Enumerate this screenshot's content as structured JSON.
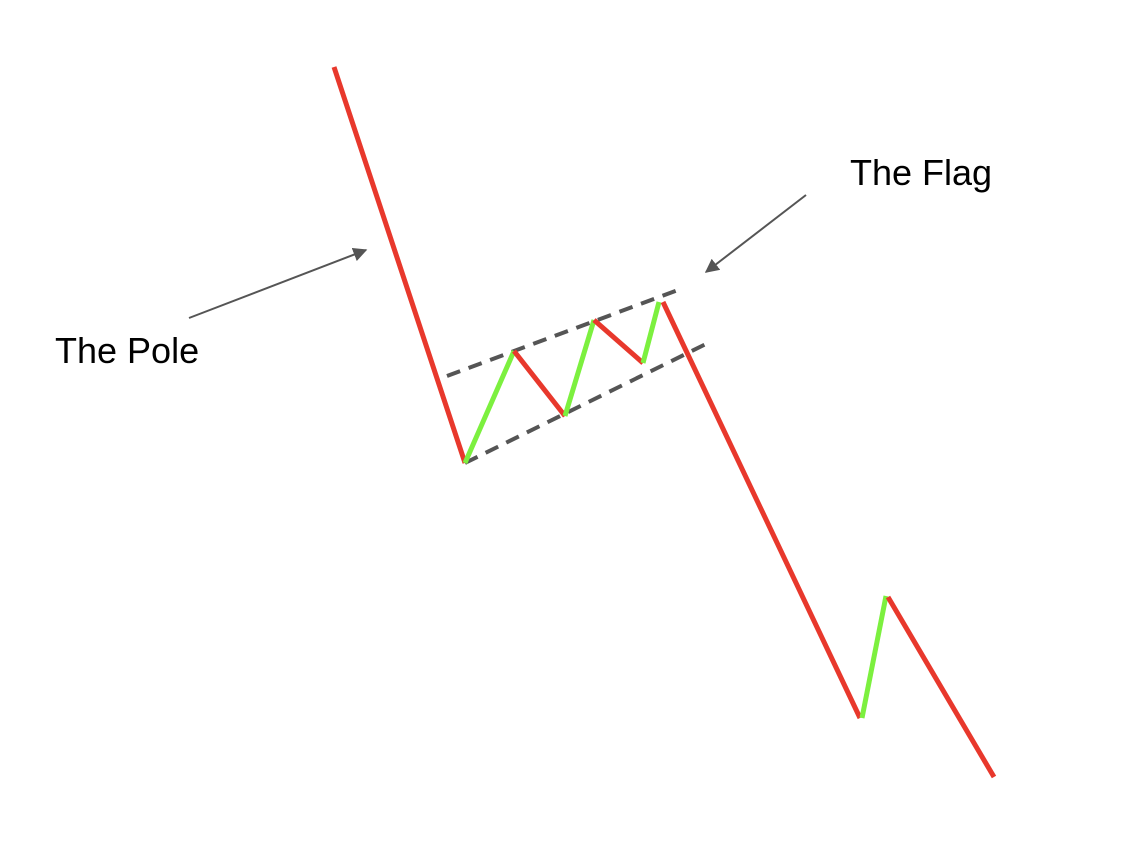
{
  "labels": {
    "pole": "The Pole",
    "flag": "The Flag"
  },
  "colors": {
    "bearish": "#e8382c",
    "bullish": "#7cf03f",
    "guide": "#555555",
    "arrow": "#555555",
    "text": "#000000",
    "background": "#ffffff"
  },
  "pattern": "bear-flag"
}
